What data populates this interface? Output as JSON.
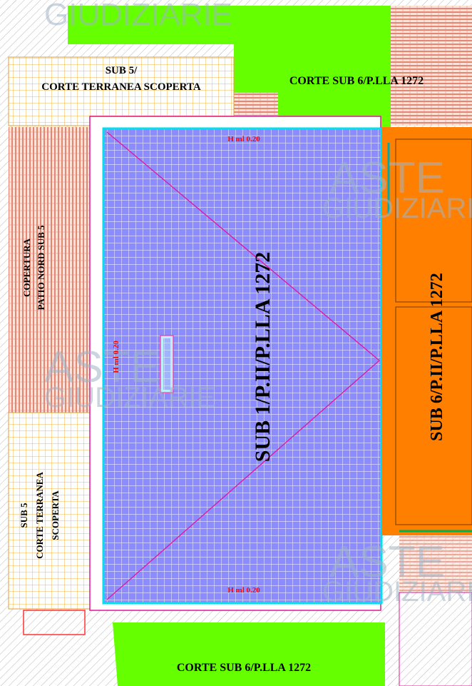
{
  "watermark": {
    "line1": "ASTE",
    "line2": "GIUDIZIARIE"
  },
  "labels": {
    "sub5_top_line1": "SUB 5/",
    "sub5_top_line2": "CORTE TERRANEA SCOPERTA",
    "corte_top": "CORTE SUB 6/P.LLA 1272",
    "copertura_line1": "COPERTURA",
    "copertura_line2": "PATIO NORD SUB 5",
    "sub1": "SUB 1/P.II/P.LLA 1272",
    "sub6": "SUB 6/P.II/P.LLA 1272",
    "sub5_left_line1": "SUB 5",
    "sub5_left_line2": "CORTE TERRANEA",
    "sub5_left_line3": "SCOPERTA",
    "corte_bottom": "CORTE SUB 6/P.LLA 1272",
    "h_top": "H ml 0.20",
    "h_left": "H ml 0.20",
    "h_bottom": "H ml 0.20"
  },
  "colors": {
    "green": "#66ff00",
    "orange": "#ff7f00",
    "blue_fill": "#8c8cff",
    "yellow_hatch": "#ffd27a",
    "red_hatch": "#e05a3a",
    "magenta": "#e0179a",
    "cyan": "#00e0f0"
  }
}
